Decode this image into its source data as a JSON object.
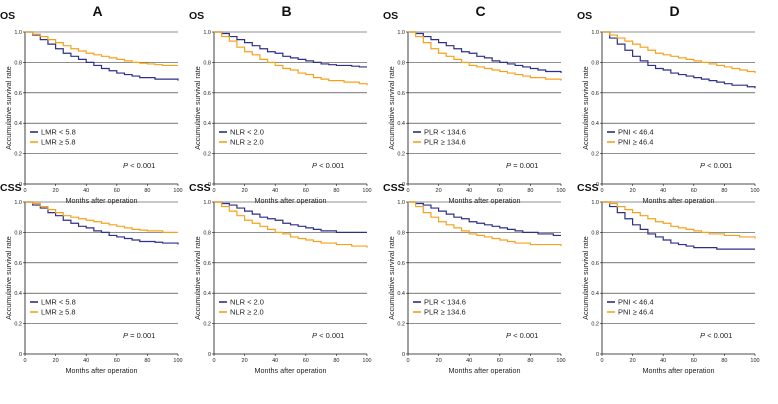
{
  "figure": {
    "columns": [
      "A",
      "B",
      "C",
      "D"
    ],
    "colors": {
      "group1": "#2e2f86",
      "group2": "#f5a21a",
      "axis": "#111111",
      "grid": "#222222"
    }
  },
  "chart_data": [
    {
      "type": "line",
      "panel": "OS",
      "column": "A",
      "xlabel": "Months after operation",
      "ylabel": "Accumulative survival rate",
      "xlim": [
        0,
        100
      ],
      "ylim": [
        0,
        1.0
      ],
      "xticks": [
        0,
        20,
        40,
        60,
        80,
        100
      ],
      "yticks": [
        0,
        0.2,
        0.4,
        0.6,
        0.8,
        1.0
      ],
      "ytick_labels": [
        "0",
        "0.2",
        "0.4",
        "0.6",
        "0.8",
        "1.0"
      ],
      "p_label": "P",
      "p_value": " < 0.001",
      "series": [
        {
          "name": "LMR < 5.8",
          "color": "#2e2f86",
          "x": [
            0,
            5,
            10,
            15,
            20,
            25,
            30,
            35,
            40,
            45,
            50,
            55,
            60,
            65,
            70,
            75,
            80,
            85,
            90,
            95,
            100
          ],
          "y": [
            1.0,
            0.98,
            0.95,
            0.92,
            0.89,
            0.86,
            0.84,
            0.82,
            0.8,
            0.78,
            0.76,
            0.745,
            0.73,
            0.72,
            0.71,
            0.7,
            0.7,
            0.69,
            0.69,
            0.69,
            0.68
          ]
        },
        {
          "name": "LMR ≥ 5.8",
          "color": "#f5a21a",
          "x": [
            0,
            5,
            10,
            15,
            20,
            25,
            30,
            35,
            40,
            45,
            50,
            55,
            60,
            65,
            70,
            75,
            80,
            85,
            90,
            95,
            100
          ],
          "y": [
            1.0,
            0.985,
            0.97,
            0.95,
            0.93,
            0.91,
            0.89,
            0.875,
            0.86,
            0.85,
            0.84,
            0.83,
            0.82,
            0.81,
            0.8,
            0.795,
            0.79,
            0.785,
            0.78,
            0.78,
            0.78
          ]
        }
      ]
    },
    {
      "type": "line",
      "panel": "OS",
      "column": "B",
      "xlabel": "Months after operation",
      "ylabel": "Accumulative survival rate",
      "xlim": [
        0,
        100
      ],
      "ylim": [
        0,
        1.0
      ],
      "xticks": [
        0,
        20,
        40,
        60,
        80,
        100
      ],
      "yticks": [
        0,
        0.2,
        0.4,
        0.6,
        0.8,
        1.0
      ],
      "ytick_labels": [
        "0",
        "0.2",
        "0.4",
        "0.6",
        "0.8",
        "1.0"
      ],
      "p_label": "P",
      "p_value": " < 0.001",
      "series": [
        {
          "name": "NLR < 2.0",
          "color": "#2e2f86",
          "x": [
            0,
            5,
            10,
            15,
            20,
            25,
            30,
            35,
            40,
            45,
            50,
            55,
            60,
            65,
            70,
            75,
            80,
            85,
            90,
            95,
            100
          ],
          "y": [
            1.0,
            0.99,
            0.97,
            0.95,
            0.93,
            0.91,
            0.89,
            0.87,
            0.86,
            0.84,
            0.83,
            0.82,
            0.81,
            0.8,
            0.79,
            0.785,
            0.78,
            0.78,
            0.775,
            0.77,
            0.77
          ]
        },
        {
          "name": "NLR ≥ 2.0",
          "color": "#f5a21a",
          "x": [
            0,
            5,
            10,
            15,
            20,
            25,
            30,
            35,
            40,
            45,
            50,
            55,
            60,
            65,
            70,
            75,
            80,
            85,
            90,
            95,
            100
          ],
          "y": [
            1.0,
            0.97,
            0.94,
            0.9,
            0.87,
            0.85,
            0.82,
            0.8,
            0.78,
            0.76,
            0.75,
            0.73,
            0.72,
            0.7,
            0.69,
            0.68,
            0.68,
            0.67,
            0.67,
            0.66,
            0.65
          ]
        }
      ]
    },
    {
      "type": "line",
      "panel": "OS",
      "column": "C",
      "xlabel": "Months after operation",
      "ylabel": "Accumulative survival rate",
      "xlim": [
        0,
        100
      ],
      "ylim": [
        0,
        1.0
      ],
      "xticks": [
        0,
        20,
        40,
        60,
        80,
        100
      ],
      "yticks": [
        0,
        0.2,
        0.4,
        0.6,
        0.8,
        1.0
      ],
      "ytick_labels": [
        "0",
        "0.2",
        "0.4",
        "0.6",
        "0.8",
        "1.0"
      ],
      "p_label": "P",
      "p_value": " = 0.001",
      "series": [
        {
          "name": "PLR < 134.6",
          "color": "#2e2f86",
          "x": [
            0,
            5,
            10,
            15,
            20,
            25,
            30,
            35,
            40,
            45,
            50,
            55,
            60,
            65,
            70,
            75,
            80,
            85,
            90,
            95,
            100
          ],
          "y": [
            1.0,
            0.99,
            0.97,
            0.95,
            0.93,
            0.91,
            0.89,
            0.87,
            0.86,
            0.84,
            0.83,
            0.81,
            0.8,
            0.79,
            0.78,
            0.77,
            0.76,
            0.75,
            0.74,
            0.74,
            0.73
          ]
        },
        {
          "name": "PLR ≥ 134.6",
          "color": "#f5a21a",
          "x": [
            0,
            5,
            10,
            15,
            20,
            25,
            30,
            35,
            40,
            45,
            50,
            55,
            60,
            65,
            70,
            75,
            80,
            85,
            90,
            95,
            100
          ],
          "y": [
            1.0,
            0.97,
            0.93,
            0.89,
            0.86,
            0.84,
            0.82,
            0.8,
            0.78,
            0.77,
            0.76,
            0.75,
            0.74,
            0.73,
            0.72,
            0.71,
            0.7,
            0.7,
            0.69,
            0.69,
            0.68
          ]
        }
      ]
    },
    {
      "type": "line",
      "panel": "OS",
      "column": "D",
      "xlabel": "Months after operation",
      "ylabel": "Accumulative survival rate",
      "xlim": [
        0,
        100
      ],
      "ylim": [
        0,
        1.0
      ],
      "xticks": [
        0,
        20,
        40,
        60,
        80,
        100
      ],
      "yticks": [
        0,
        0.2,
        0.4,
        0.6,
        0.8,
        1.0
      ],
      "ytick_labels": [
        "0",
        "0.2",
        "0.4",
        "0.6",
        "0.8",
        "1.0"
      ],
      "p_label": "P",
      "p_value": " < 0.001",
      "series": [
        {
          "name": "PNI < 46.4",
          "color": "#2e2f86",
          "x": [
            0,
            5,
            10,
            15,
            20,
            25,
            30,
            35,
            40,
            45,
            50,
            55,
            60,
            65,
            70,
            75,
            80,
            85,
            90,
            95,
            100
          ],
          "y": [
            1.0,
            0.96,
            0.92,
            0.88,
            0.84,
            0.81,
            0.78,
            0.76,
            0.75,
            0.73,
            0.72,
            0.71,
            0.7,
            0.69,
            0.68,
            0.67,
            0.66,
            0.65,
            0.65,
            0.64,
            0.63
          ]
        },
        {
          "name": "PNI ≥ 46.4",
          "color": "#f5a21a",
          "x": [
            0,
            5,
            10,
            15,
            20,
            25,
            30,
            35,
            40,
            45,
            50,
            55,
            60,
            65,
            70,
            75,
            80,
            85,
            90,
            95,
            100
          ],
          "y": [
            1.0,
            0.98,
            0.96,
            0.94,
            0.92,
            0.9,
            0.88,
            0.86,
            0.85,
            0.84,
            0.83,
            0.82,
            0.81,
            0.8,
            0.79,
            0.78,
            0.77,
            0.76,
            0.75,
            0.74,
            0.73
          ]
        }
      ]
    },
    {
      "type": "line",
      "panel": "CSS",
      "column": "A",
      "xlabel": "Months after operation",
      "ylabel": "Accumulative survival rate",
      "xlim": [
        0,
        100
      ],
      "ylim": [
        0,
        1.0
      ],
      "xticks": [
        0,
        20,
        40,
        60,
        80,
        100
      ],
      "yticks": [
        0,
        0.2,
        0.4,
        0.6,
        0.8,
        1.0
      ],
      "ytick_labels": [
        "0",
        "0.2",
        "0.4",
        "0.6",
        "0.8",
        "1.0"
      ],
      "p_label": "P",
      "p_value": " = 0.001",
      "series": [
        {
          "name": "LMR < 5.8",
          "color": "#2e2f86",
          "x": [
            0,
            5,
            10,
            15,
            20,
            25,
            30,
            35,
            40,
            45,
            50,
            55,
            60,
            65,
            70,
            75,
            80,
            85,
            90,
            95,
            100
          ],
          "y": [
            1.0,
            0.98,
            0.96,
            0.93,
            0.91,
            0.88,
            0.86,
            0.84,
            0.83,
            0.81,
            0.8,
            0.78,
            0.77,
            0.76,
            0.75,
            0.74,
            0.74,
            0.735,
            0.73,
            0.73,
            0.72
          ]
        },
        {
          "name": "LMR ≥ 5.8",
          "color": "#f5a21a",
          "x": [
            0,
            5,
            10,
            15,
            20,
            25,
            30,
            35,
            40,
            45,
            50,
            55,
            60,
            65,
            70,
            75,
            80,
            85,
            90,
            95,
            100
          ],
          "y": [
            1.0,
            0.99,
            0.97,
            0.95,
            0.93,
            0.91,
            0.9,
            0.89,
            0.88,
            0.87,
            0.86,
            0.85,
            0.84,
            0.83,
            0.82,
            0.815,
            0.81,
            0.81,
            0.8,
            0.8,
            0.8
          ]
        }
      ]
    },
    {
      "type": "line",
      "panel": "CSS",
      "column": "B",
      "xlabel": "Months after operation",
      "ylabel": "Accumulative survival rate",
      "xlim": [
        0,
        100
      ],
      "ylim": [
        0,
        1.0
      ],
      "xticks": [
        0,
        20,
        40,
        60,
        80,
        100
      ],
      "yticks": [
        0,
        0.2,
        0.4,
        0.6,
        0.8,
        1.0
      ],
      "ytick_labels": [
        "0",
        "0.2",
        "0.4",
        "0.6",
        "0.8",
        "1.0"
      ],
      "p_label": "P",
      "p_value": " < 0.001",
      "series": [
        {
          "name": "NLR < 2.0",
          "color": "#2e2f86",
          "x": [
            0,
            5,
            10,
            15,
            20,
            25,
            30,
            35,
            40,
            45,
            50,
            55,
            60,
            65,
            70,
            75,
            80,
            85,
            90,
            95,
            100
          ],
          "y": [
            1.0,
            0.99,
            0.98,
            0.96,
            0.94,
            0.92,
            0.9,
            0.89,
            0.88,
            0.86,
            0.85,
            0.84,
            0.83,
            0.82,
            0.81,
            0.81,
            0.8,
            0.8,
            0.8,
            0.8,
            0.8
          ]
        },
        {
          "name": "NLR ≥ 2.0",
          "color": "#f5a21a",
          "x": [
            0,
            5,
            10,
            15,
            20,
            25,
            30,
            35,
            40,
            45,
            50,
            55,
            60,
            65,
            70,
            75,
            80,
            85,
            90,
            95,
            100
          ],
          "y": [
            1.0,
            0.97,
            0.94,
            0.91,
            0.88,
            0.86,
            0.84,
            0.82,
            0.8,
            0.79,
            0.77,
            0.76,
            0.75,
            0.74,
            0.73,
            0.73,
            0.72,
            0.72,
            0.71,
            0.71,
            0.7
          ]
        }
      ]
    },
    {
      "type": "line",
      "panel": "CSS",
      "column": "C",
      "xlabel": "Months after operation",
      "ylabel": "Accumulative survival rate",
      "xlim": [
        0,
        100
      ],
      "ylim": [
        0,
        1.0
      ],
      "xticks": [
        0,
        20,
        40,
        60,
        80,
        100
      ],
      "yticks": [
        0,
        0.2,
        0.4,
        0.6,
        0.8,
        1.0
      ],
      "ytick_labels": [
        "0",
        "0.2",
        "0.4",
        "0.6",
        "0.8",
        "1.0"
      ],
      "p_label": "P",
      "p_value": " < 0.001",
      "series": [
        {
          "name": "PLR < 134.6",
          "color": "#2e2f86",
          "x": [
            0,
            5,
            10,
            15,
            20,
            25,
            30,
            35,
            40,
            45,
            50,
            55,
            60,
            65,
            70,
            75,
            80,
            85,
            90,
            95,
            100
          ],
          "y": [
            1.0,
            0.99,
            0.98,
            0.96,
            0.94,
            0.92,
            0.9,
            0.89,
            0.87,
            0.86,
            0.85,
            0.84,
            0.83,
            0.82,
            0.81,
            0.8,
            0.8,
            0.79,
            0.79,
            0.78,
            0.78
          ]
        },
        {
          "name": "PLR ≥ 134.6",
          "color": "#f5a21a",
          "x": [
            0,
            5,
            10,
            15,
            20,
            25,
            30,
            35,
            40,
            45,
            50,
            55,
            60,
            65,
            70,
            75,
            80,
            85,
            90,
            95,
            100
          ],
          "y": [
            1.0,
            0.97,
            0.93,
            0.9,
            0.87,
            0.85,
            0.83,
            0.81,
            0.79,
            0.78,
            0.77,
            0.76,
            0.75,
            0.74,
            0.73,
            0.73,
            0.72,
            0.72,
            0.72,
            0.72,
            0.71
          ]
        }
      ]
    },
    {
      "type": "line",
      "panel": "CSS",
      "column": "D",
      "xlabel": "Months after operation",
      "ylabel": "Accumulative survival rate",
      "xlim": [
        0,
        100
      ],
      "ylim": [
        0,
        1.0
      ],
      "xticks": [
        0,
        20,
        40,
        60,
        80,
        100
      ],
      "yticks": [
        0,
        0.2,
        0.4,
        0.6,
        0.8,
        1.0
      ],
      "ytick_labels": [
        "0",
        "0.2",
        "0.4",
        "0.6",
        "0.8",
        "1.0"
      ],
      "p_label": "P",
      "p_value": " < 0.001",
      "series": [
        {
          "name": "PNI < 46.4",
          "color": "#2e2f86",
          "x": [
            0,
            5,
            10,
            15,
            20,
            25,
            30,
            35,
            40,
            45,
            50,
            55,
            60,
            65,
            70,
            75,
            80,
            85,
            90,
            95,
            100
          ],
          "y": [
            1.0,
            0.97,
            0.93,
            0.89,
            0.85,
            0.82,
            0.79,
            0.77,
            0.75,
            0.73,
            0.72,
            0.71,
            0.7,
            0.7,
            0.7,
            0.69,
            0.69,
            0.69,
            0.69,
            0.69,
            0.69
          ]
        },
        {
          "name": "PNI ≥ 46.4",
          "color": "#f5a21a",
          "x": [
            0,
            5,
            10,
            15,
            20,
            25,
            30,
            35,
            40,
            45,
            50,
            55,
            60,
            65,
            70,
            75,
            80,
            85,
            90,
            95,
            100
          ],
          "y": [
            1.0,
            0.99,
            0.97,
            0.95,
            0.93,
            0.91,
            0.89,
            0.87,
            0.86,
            0.84,
            0.83,
            0.82,
            0.81,
            0.8,
            0.79,
            0.79,
            0.78,
            0.78,
            0.77,
            0.77,
            0.76
          ]
        }
      ]
    }
  ]
}
